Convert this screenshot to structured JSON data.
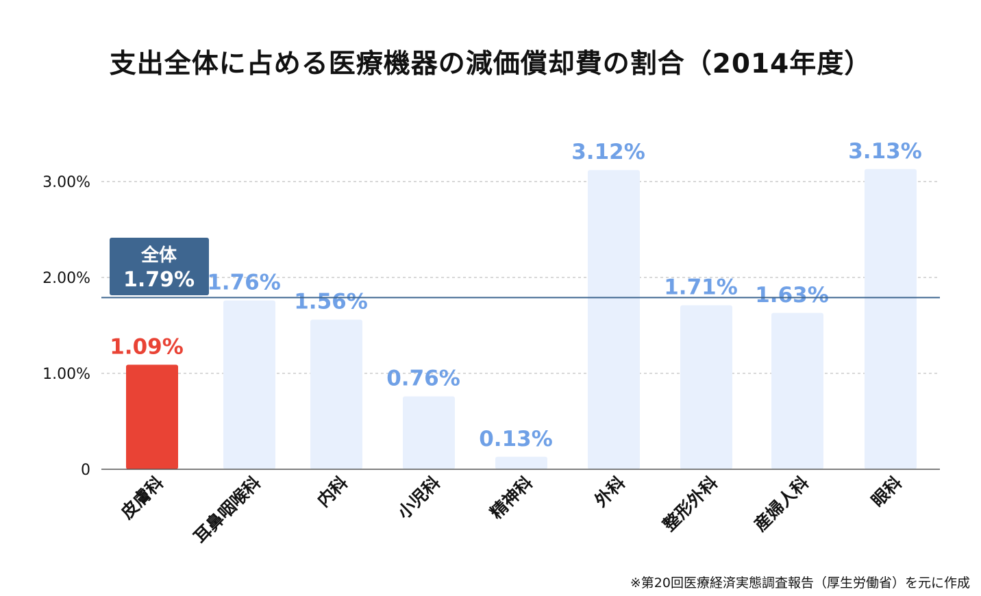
{
  "title": "支出全体に占める医療機器の減価償却費の割合（2014年度）",
  "source": "※第20回医療経済実態調査報告（厚生労働省）を元に作成",
  "chart_data": {
    "type": "bar",
    "categories": [
      "皮膚科",
      "耳鼻咽喉科",
      "内科",
      "小児科",
      "精神科",
      "外科",
      "整形外科",
      "産婦人科",
      "眼科"
    ],
    "values": [
      1.09,
      1.76,
      1.56,
      0.76,
      0.13,
      3.12,
      1.71,
      1.63,
      3.13
    ],
    "value_labels": [
      "1.09%",
      "1.76%",
      "1.56%",
      "0.76%",
      "0.13%",
      "3.12%",
      "1.71%",
      "1.63%",
      "3.13%"
    ],
    "highlight_index": 0,
    "ylim": [
      0,
      3.0
    ],
    "yticks": [
      0,
      1,
      2,
      3
    ],
    "ytick_labels": [
      "0",
      "1.00%",
      "2.00%",
      "3.00%"
    ],
    "grid": true,
    "reference_line": {
      "value": 1.79,
      "label_line1": "全体",
      "label_line2": "1.79%"
    },
    "colors": {
      "highlight_bar": "#e94335",
      "bar": "#e8f0fd",
      "label": "#6fa0e6",
      "highlight_label": "#e94335",
      "reference": "#3e6690",
      "grid": "#b0b0b0",
      "axis": "#555555"
    }
  }
}
